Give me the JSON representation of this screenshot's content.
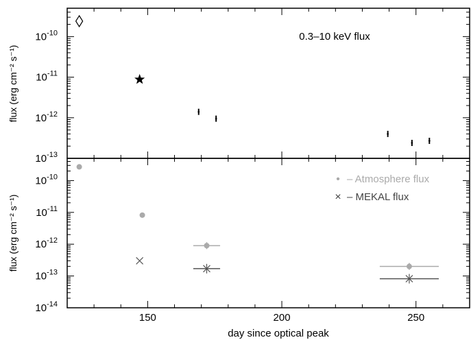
{
  "chart_data": [
    {
      "type": "scatter",
      "ylabel": "flux (erg cm⁻² s⁻¹)",
      "xlabel": "",
      "yscale": "log",
      "xlim": [
        120,
        270
      ],
      "ylim": [
        1e-13,
        5e-10
      ],
      "y_tick_labels": [
        {
          "exp": "-10",
          "value": 1e-10
        },
        {
          "exp": "-11",
          "value": 1e-11
        },
        {
          "exp": "-12",
          "value": 1e-12
        },
        {
          "exp": "-13",
          "value": 1e-13
        }
      ],
      "annotation": "0.3–10 keV flux",
      "series": [
        {
          "marker": "diamond",
          "color": "#000000",
          "x": [
            124.5
          ],
          "y": [
            2.4e-10
          ]
        },
        {
          "marker": "star",
          "color": "#000000",
          "x": [
            147
          ],
          "y": [
            8.8e-12
          ]
        },
        {
          "marker": "errorbar",
          "color": "#000000",
          "x": [
            169,
            175.5,
            239.5,
            248.5,
            255
          ],
          "y": [
            1.4e-12,
            9.5e-13,
            4e-13,
            2.4e-13,
            2.7e-13
          ]
        }
      ]
    },
    {
      "type": "scatter",
      "ylabel": "flux (erg cm⁻² s⁻¹)",
      "xlabel": "day since optical peak",
      "yscale": "log",
      "xlim": [
        120,
        270
      ],
      "ylim": [
        1e-14,
        5e-10
      ],
      "x_ticks": [
        150,
        200,
        250
      ],
      "y_tick_labels": [
        {
          "exp": "-10",
          "value": 1e-10
        },
        {
          "exp": "-11",
          "value": 1e-11
        },
        {
          "exp": "-12",
          "value": 1e-12
        },
        {
          "exp": "-13",
          "value": 1e-13
        },
        {
          "exp": "-14",
          "value": 1e-14
        }
      ],
      "legend": {
        "placement": "top-right",
        "entries": [
          {
            "symbol": "•",
            "label": "– Atmosphere flux",
            "color": "#aaaaaa"
          },
          {
            "symbol": "×",
            "label": "– MEKAL flux",
            "color": "#444444"
          }
        ]
      },
      "series": [
        {
          "name": "Atmosphere flux",
          "marker": "circle",
          "color": "#aaaaaa",
          "x": [
            124.5,
            148,
            172,
            247.5
          ],
          "y": [
            2.7e-10,
            8.2e-12,
            9e-13,
            2e-13
          ],
          "x_err": [
            0,
            0,
            5,
            11
          ]
        },
        {
          "name": "MEKAL flux",
          "marker": "cross",
          "color": "#555555",
          "x": [
            147,
            172,
            247.5
          ],
          "y": [
            3e-13,
            1.7e-13,
            8.2e-14
          ],
          "x_err": [
            0,
            5,
            11
          ]
        }
      ]
    }
  ],
  "tick_base": "10"
}
